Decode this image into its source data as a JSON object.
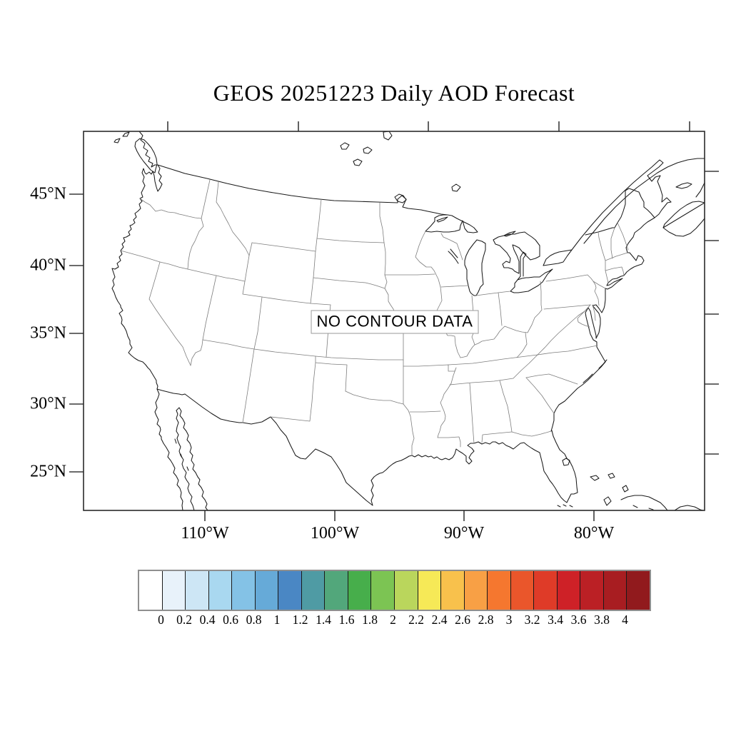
{
  "title": "GEOS 20251223 Daily AOD Forecast",
  "map": {
    "no_data_label": "NO CONTOUR DATA"
  },
  "axes": {
    "lat_labels": [
      "45°N",
      "40°N",
      "35°N",
      "30°N",
      "25°N"
    ],
    "lon_labels": [
      "110°W",
      "100°W",
      "90°W",
      "80°W"
    ]
  },
  "colorbar": {
    "tick_labels": [
      "0",
      "0.2",
      "0.4",
      "0.6",
      "0.8",
      "1",
      "1.2",
      "1.4",
      "1.6",
      "1.8",
      "2",
      "2.2",
      "2.4",
      "2.6",
      "2.8",
      "3",
      "3.2",
      "3.4",
      "3.6",
      "3.8",
      "4"
    ],
    "colors": [
      "#FFFFFF",
      "#E8F2FA",
      "#CDE6F5",
      "#A9D8F0",
      "#84C2E6",
      "#66AAD8",
      "#4A87C4",
      "#4F9BA4",
      "#52A77B",
      "#47AE4B",
      "#7CC453",
      "#BAD65C",
      "#F6E957",
      "#F8C14C",
      "#F8A045",
      "#F5772F",
      "#EA562B",
      "#DF3B28",
      "#CE2127",
      "#BB2025",
      "#A81D21",
      "#911A1D"
    ]
  }
}
